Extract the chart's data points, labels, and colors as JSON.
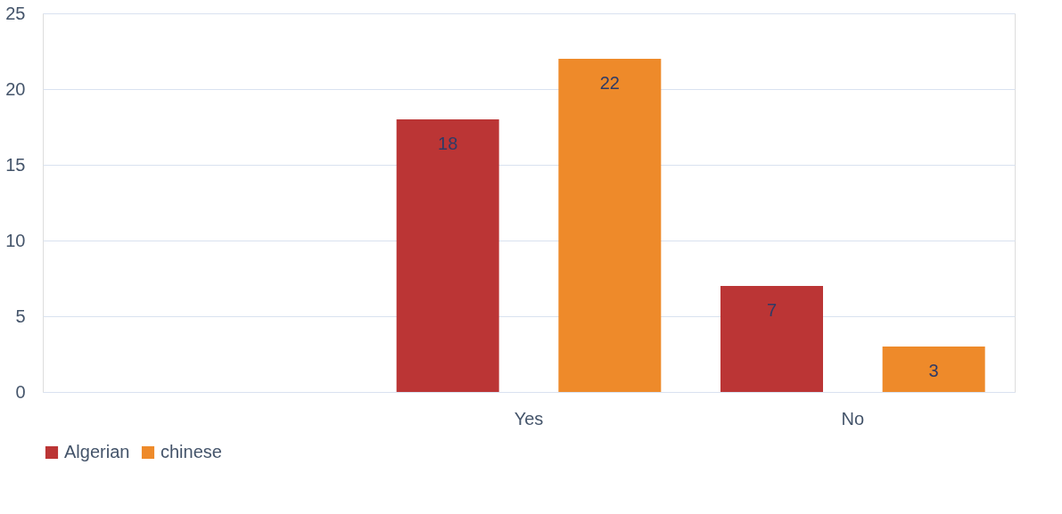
{
  "chart_data": {
    "type": "bar",
    "categories": [
      null,
      "Yes",
      "No"
    ],
    "series": [
      {
        "name": "Algerian",
        "color": "#bb3535",
        "values": [
          null,
          18,
          7
        ]
      },
      {
        "name": "chinese",
        "color": "#ee8a2a",
        "values": [
          null,
          22,
          3
        ]
      }
    ],
    "ylim": [
      0,
      25
    ],
    "yticks": [
      0,
      5,
      10,
      15,
      20,
      25
    ],
    "grid": "y",
    "legend": "bottom",
    "data_labels": true
  }
}
